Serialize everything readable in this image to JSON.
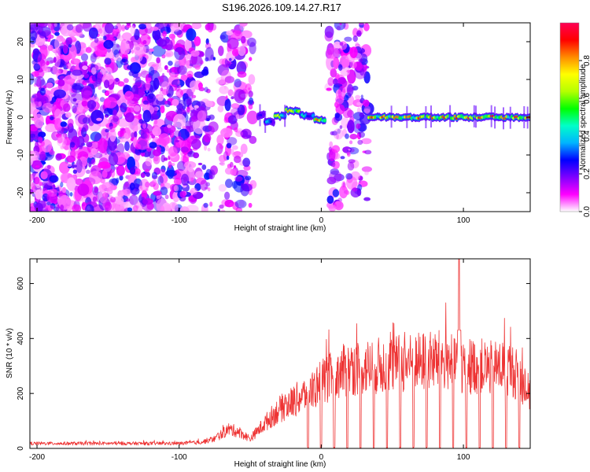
{
  "title": "S196.2026.109.14.27.R17",
  "chart_data": [
    {
      "type": "heatmap",
      "name": "spectrogram",
      "xlabel": "Height of straight line (km)",
      "ylabel": "Frequency (Hz)",
      "xlim": [
        -205,
        147
      ],
      "ylim": [
        -25,
        25
      ],
      "x_ticks": [
        -200,
        -100,
        0,
        100
      ],
      "x_tick_labels": [
        "-200",
        "-100",
        "0",
        "100"
      ],
      "y_ticks": [
        -20,
        -10,
        0,
        10,
        20
      ],
      "y_tick_labels": [
        "-20",
        "-10",
        "0",
        "10",
        "20"
      ],
      "colorbar": {
        "label": "Normalized spectral amplitude",
        "range": [
          0.0,
          1.0
        ],
        "ticks": [
          0.0,
          0.2,
          0.4,
          0.6,
          0.8
        ],
        "tick_labels": [
          "0.0",
          "0.2",
          "0.4",
          "0.6",
          "0.8"
        ],
        "colors": [
          "#ffffff",
          "#ff00ff",
          "#7f00ff",
          "#0000ff",
          "#00b4ff",
          "#00ffc8",
          "#00ff00",
          "#b4ff00",
          "#ffff00",
          "#ff8c00",
          "#ff0000",
          "#ff0055"
        ]
      },
      "noise_regions": [
        {
          "x_start": -205,
          "x_end": -90,
          "density": 0.9
        },
        {
          "x_start": -90,
          "x_end": -75,
          "density": 0.45
        },
        {
          "x_start": -72,
          "x_end": -48,
          "density": 0.5
        },
        {
          "x_start": 5,
          "x_end": 33,
          "density": 0.55
        }
      ],
      "tone_segments": [
        {
          "x_start": -45,
          "x_end": -40,
          "freq": 0.5,
          "amp": 0.25
        },
        {
          "x_start": -40,
          "x_end": -33,
          "freq": -1.2,
          "amp": 0.4
        },
        {
          "x_start": -33,
          "x_end": -25,
          "freq": 0.3,
          "amp": 0.75
        },
        {
          "x_start": -25,
          "x_end": -15,
          "freq": 1.8,
          "amp": 0.85
        },
        {
          "x_start": -15,
          "x_end": -5,
          "freq": 0.4,
          "amp": 0.45
        },
        {
          "x_start": -5,
          "x_end": 3,
          "freq": -0.8,
          "amp": 0.8
        },
        {
          "x_start": 33,
          "x_end": 147,
          "freq": 0.0,
          "amp": 0.9
        }
      ]
    },
    {
      "type": "line",
      "name": "snr",
      "xlabel": "Height of straight line (km)",
      "ylabel": "SNR (10 * v/v)",
      "xlim": [
        -205,
        147
      ],
      "ylim": [
        0,
        690
      ],
      "x_ticks": [
        -200,
        -100,
        0,
        100
      ],
      "x_tick_labels": [
        "-200",
        "-100",
        "0",
        "100"
      ],
      "y_ticks": [
        0,
        200,
        400,
        600
      ],
      "y_tick_labels": [
        "0",
        "200",
        "400",
        "600"
      ],
      "series_color": "#ee3333",
      "envelope": {
        "x": [
          -205,
          -100,
          -85,
          -75,
          -65,
          -58,
          -50,
          -40,
          -30,
          -20,
          -10,
          0,
          10,
          20,
          40,
          60,
          80,
          90,
          100,
          110,
          120,
          130,
          140,
          147
        ],
        "y": [
          18,
          18,
          22,
          35,
          70,
          60,
          35,
          90,
          140,
          170,
          200,
          240,
          270,
          290,
          300,
          310,
          320,
          320,
          300,
          300,
          290,
          300,
          260,
          190
        ]
      },
      "noise_amplitude": 0.35,
      "dropout_start_x": -10,
      "dropout_period_km": 9.3,
      "spike": {
        "x": 97,
        "peak": 690
      }
    }
  ]
}
